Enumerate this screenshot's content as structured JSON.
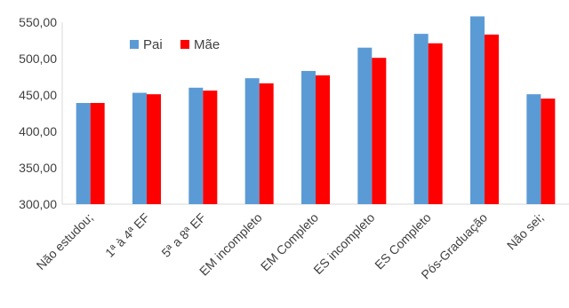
{
  "chart_data": {
    "type": "bar",
    "categories": [
      "Não estudou;",
      "1ª à 4ª EF",
      "5ª a 8ª EF",
      "EM incompleto",
      "EM Completo",
      "ES incompleto",
      "ES Completo",
      "Pós-Graduação",
      "Não sei;"
    ],
    "series": [
      {
        "name": "Pai",
        "color": "#5b9bd5",
        "values": [
          439,
          453,
          460,
          473,
          483,
          515,
          534,
          558,
          451
        ]
      },
      {
        "name": "Mãe",
        "color": "#ff0000",
        "values": [
          439,
          451,
          456,
          466,
          477,
          501,
          521,
          533,
          445
        ]
      }
    ],
    "y_ticks": [
      "300,00",
      "350,00",
      "400,00",
      "450,00",
      "500,00",
      "550,00"
    ],
    "ylim": [
      300,
      560
    ],
    "grid": false,
    "legend_position": "top-left",
    "title": "",
    "xlabel": "",
    "ylabel": ""
  }
}
